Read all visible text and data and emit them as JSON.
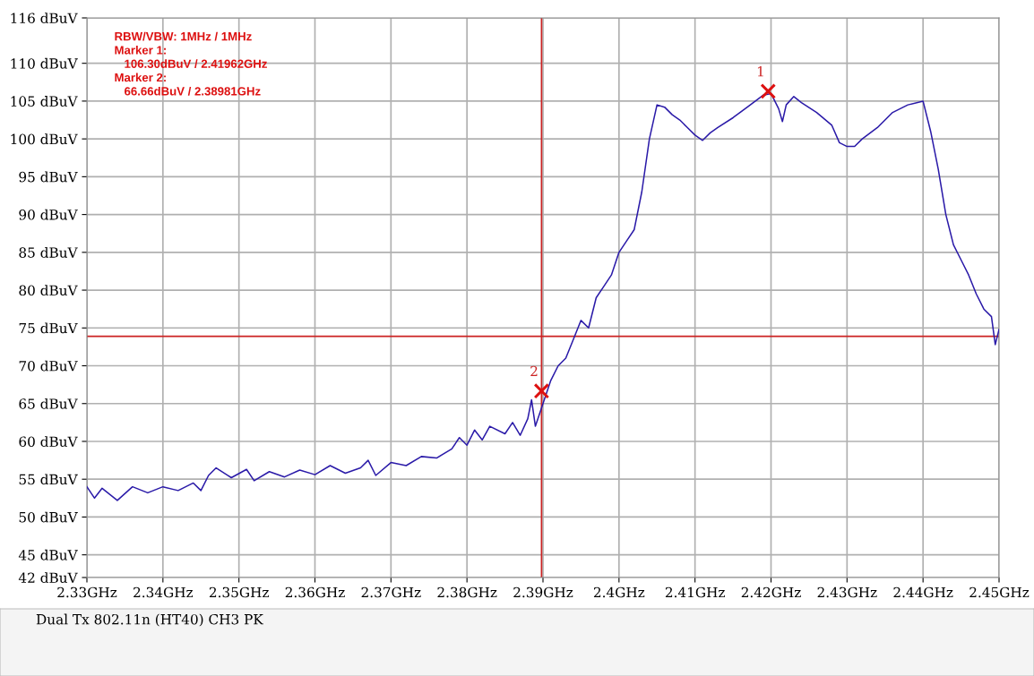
{
  "chart_data": {
    "type": "line",
    "xlim": [
      2.33,
      2.45
    ],
    "ylim": [
      42,
      116
    ],
    "xticks": [
      {
        "value": 2.33,
        "label": "2.33GHz"
      },
      {
        "value": 2.34,
        "label": "2.34GHz"
      },
      {
        "value": 2.35,
        "label": "2.35GHz"
      },
      {
        "value": 2.36,
        "label": "2.36GHz"
      },
      {
        "value": 2.37,
        "label": "2.37GHz"
      },
      {
        "value": 2.38,
        "label": "2.38GHz"
      },
      {
        "value": 2.39,
        "label": "2.39GHz"
      },
      {
        "value": 2.4,
        "label": "2.4GHz"
      },
      {
        "value": 2.41,
        "label": "2.41GHz"
      },
      {
        "value": 2.42,
        "label": "2.42GHz"
      },
      {
        "value": 2.43,
        "label": "2.43GHz"
      },
      {
        "value": 2.44,
        "label": "2.44GHz"
      },
      {
        "value": 2.45,
        "label": "2.45GHz"
      }
    ],
    "yticks": [
      {
        "value": 42,
        "label": "42 dBuV"
      },
      {
        "value": 45,
        "label": "45 dBuV"
      },
      {
        "value": 50,
        "label": "50 dBuV"
      },
      {
        "value": 55,
        "label": "55 dBuV"
      },
      {
        "value": 60,
        "label": "60 dBuV"
      },
      {
        "value": 65,
        "label": "65 dBuV"
      },
      {
        "value": 70,
        "label": "70 dBuV"
      },
      {
        "value": 75,
        "label": "75 dBuV"
      },
      {
        "value": 80,
        "label": "80 dBuV"
      },
      {
        "value": 85,
        "label": "85 dBuV"
      },
      {
        "value": 90,
        "label": "90 dBuV"
      },
      {
        "value": 95,
        "label": "95 dBuV"
      },
      {
        "value": 100,
        "label": "100 dBuV"
      },
      {
        "value": 105,
        "label": "105 dBuV"
      },
      {
        "value": 110,
        "label": "110 dBuV"
      },
      {
        "value": 116,
        "label": "116 dBuV"
      }
    ],
    "grid": true,
    "series": [
      {
        "color": "#2a1aa8",
        "marker": "none",
        "x": [
          2.33,
          2.331,
          2.332,
          2.334,
          2.336,
          2.338,
          2.34,
          2.342,
          2.344,
          2.345,
          2.346,
          2.347,
          2.349,
          2.351,
          2.352,
          2.354,
          2.356,
          2.358,
          2.36,
          2.362,
          2.364,
          2.366,
          2.367,
          2.368,
          2.37,
          2.372,
          2.374,
          2.376,
          2.378,
          2.379,
          2.38,
          2.381,
          2.382,
          2.383,
          2.385,
          2.386,
          2.387,
          2.388,
          2.3885,
          2.389,
          2.391,
          2.392,
          2.393,
          2.394,
          2.395,
          2.396,
          2.397,
          2.398,
          2.399,
          2.4,
          2.401,
          2.402,
          2.403,
          2.404,
          2.405,
          2.406,
          2.407,
          2.408,
          2.409,
          2.41,
          2.411,
          2.412,
          2.413,
          2.415,
          2.417,
          2.419,
          2.42,
          2.421,
          2.4215,
          2.422,
          2.423,
          2.424,
          2.426,
          2.428,
          2.429,
          2.43,
          2.431,
          2.432,
          2.434,
          2.436,
          2.438,
          2.44,
          2.441,
          2.442,
          2.443,
          2.444,
          2.445,
          2.446,
          2.447,
          2.448,
          2.449,
          2.4495,
          2.45
        ],
        "values": [
          54,
          52.5,
          53.8,
          52.2,
          54,
          53.2,
          54,
          53.5,
          54.5,
          53.5,
          55.5,
          56.5,
          55.2,
          56.3,
          54.8,
          56,
          55.3,
          56.2,
          55.6,
          56.8,
          55.8,
          56.5,
          57.5,
          55.5,
          57.2,
          56.8,
          58,
          57.8,
          59,
          60.5,
          59.5,
          61.5,
          60.2,
          62,
          61,
          62.5,
          60.8,
          63,
          65.5,
          62,
          68,
          70,
          71,
          73.5,
          76,
          75,
          79,
          80.5,
          82,
          85,
          86.5,
          88,
          93,
          100,
          104.5,
          104.2,
          103.2,
          102.5,
          101.5,
          100.5,
          99.8,
          100.8,
          101.5,
          102.8,
          104.3,
          105.8,
          106,
          104,
          102.3,
          104.5,
          105.6,
          104.8,
          103.5,
          101.8,
          99.5,
          99,
          99,
          100,
          101.5,
          103.5,
          104.5,
          105,
          101,
          96,
          90,
          86,
          84,
          82,
          79.5,
          77.5,
          76.5,
          72.8,
          74.8
        ]
      },
      {
        "type": "scatter",
        "color": "#dd1111",
        "marker": "cross",
        "x": [
          2.41962,
          2.38981
        ],
        "values": [
          106.3,
          66.66
        ]
      }
    ],
    "ref_lines": [
      {
        "axis": "x",
        "value": 2.38981,
        "color": "#cc2222"
      },
      {
        "axis": "y",
        "value": 73.9,
        "color": "#cc2222"
      }
    ],
    "annotations": [
      {
        "text": "1",
        "x": 2.41962,
        "y": 106.3
      },
      {
        "text": "2",
        "x": 2.38981,
        "y": 66.66
      },
      "RBW/VBW: 1MHz / 1MHz",
      "Marker 1:",
      "   106.30dBuV / 2.41962GHz",
      "Marker 2:",
      "   66.66dBuV / 2.38981GHz",
      "Dual Tx 802.11n (HT40) CH3 PK"
    ]
  }
}
